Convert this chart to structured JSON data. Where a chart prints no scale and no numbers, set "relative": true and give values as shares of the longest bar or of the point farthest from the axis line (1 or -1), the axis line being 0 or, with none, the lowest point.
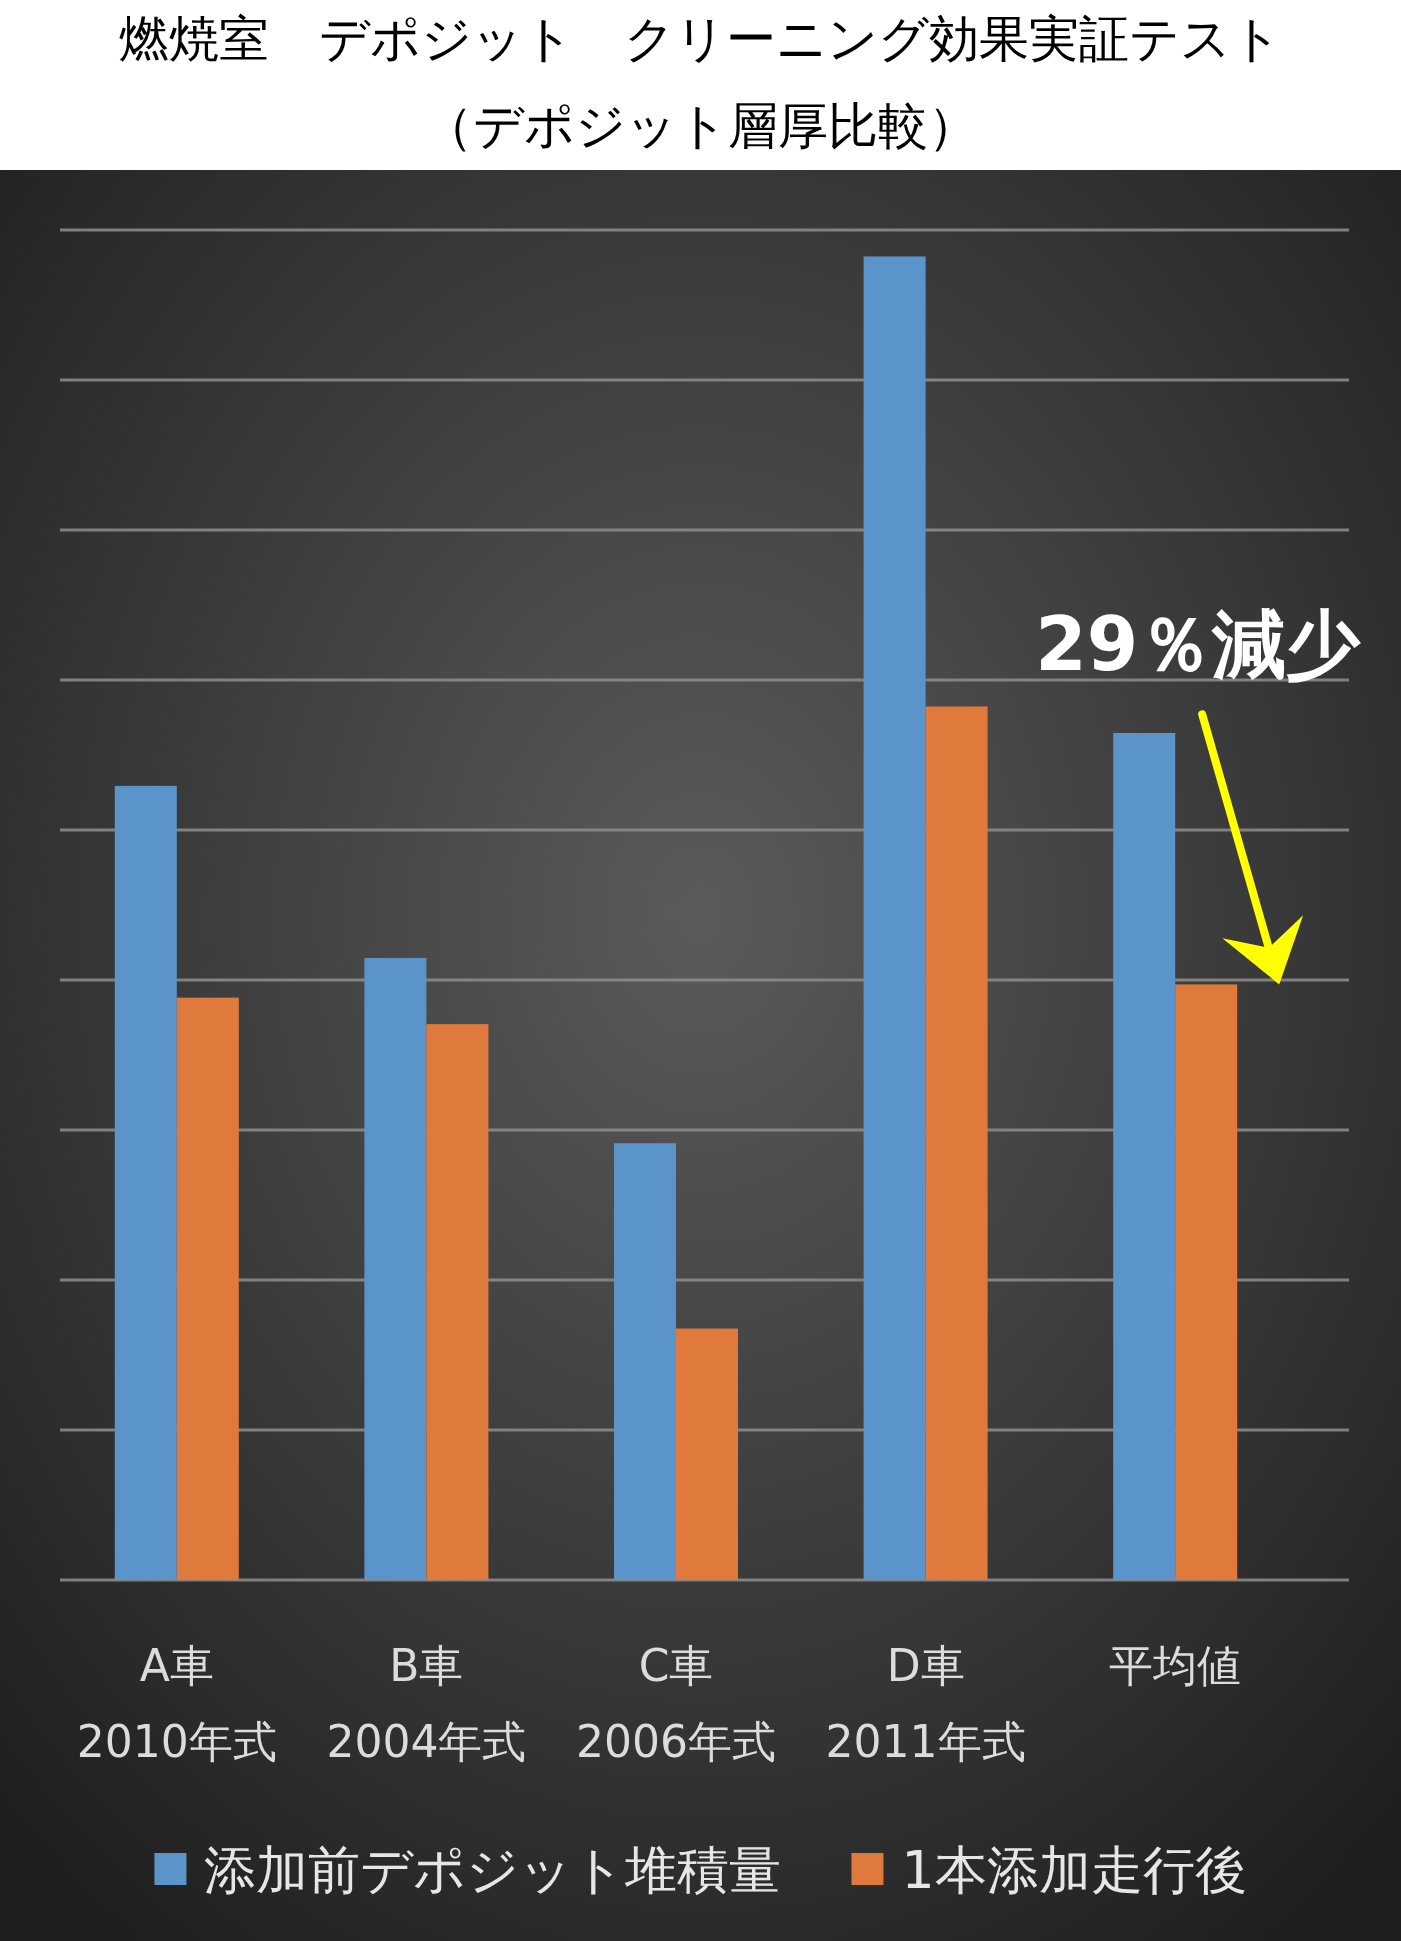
{
  "chart_data": {
    "type": "bar",
    "title": "燃焼室　デポジット　クリーニング効果実証テスト",
    "subtitle": "（デポジット層厚比較）",
    "categories": [
      "A車\n2010年式",
      "B車\n2004年式",
      "C車\n2006年式",
      "D車\n2011年式",
      "平均値"
    ],
    "series": [
      {
        "name": "添加前デポジット堆積量",
        "color": "#5b94ca",
        "values": [
          0.6,
          0.47,
          0.33,
          1,
          0.64
        ]
      },
      {
        "name": "1本添加走行後",
        "color": "#e07a3c",
        "values": [
          0.44,
          0.42,
          0.19,
          0.66,
          0.45
        ]
      }
    ],
    "relative": true,
    "grid": true,
    "legend": "bottom",
    "annotations": [
      "29％減少"
    ]
  }
}
